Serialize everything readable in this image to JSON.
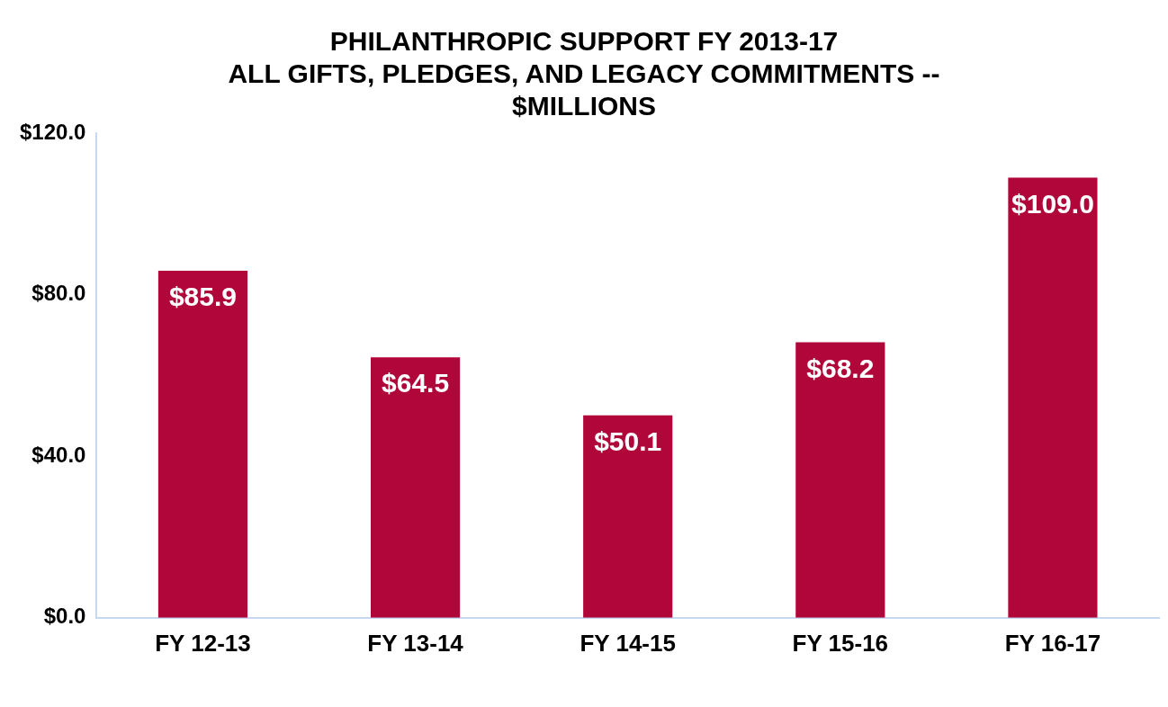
{
  "chart_data": {
    "type": "bar",
    "title": "PHILANTHROPIC SUPPORT FY 2013-17\nALL GIFTS, PLEDGES, AND LEGACY COMMITMENTS --\n$MILLIONS",
    "categories": [
      "FY 12-13",
      "FY 13-14",
      "FY 14-15",
      "FY 15-16",
      "FY 16-17"
    ],
    "values": [
      85.9,
      64.5,
      50.1,
      68.2,
      109.0
    ],
    "value_labels": [
      "$85.9",
      "$64.5",
      "$50.1",
      "$68.2",
      "$109.0"
    ],
    "color": "#b0063a",
    "ylim": [
      0,
      120
    ],
    "yticks": [
      {
        "value": 0,
        "label": "$0.0"
      },
      {
        "value": 40,
        "label": "$40.0"
      },
      {
        "value": 80,
        "label": "$80.0"
      },
      {
        "value": 120,
        "label": "$120.0"
      }
    ],
    "grid": false,
    "legend": false
  }
}
